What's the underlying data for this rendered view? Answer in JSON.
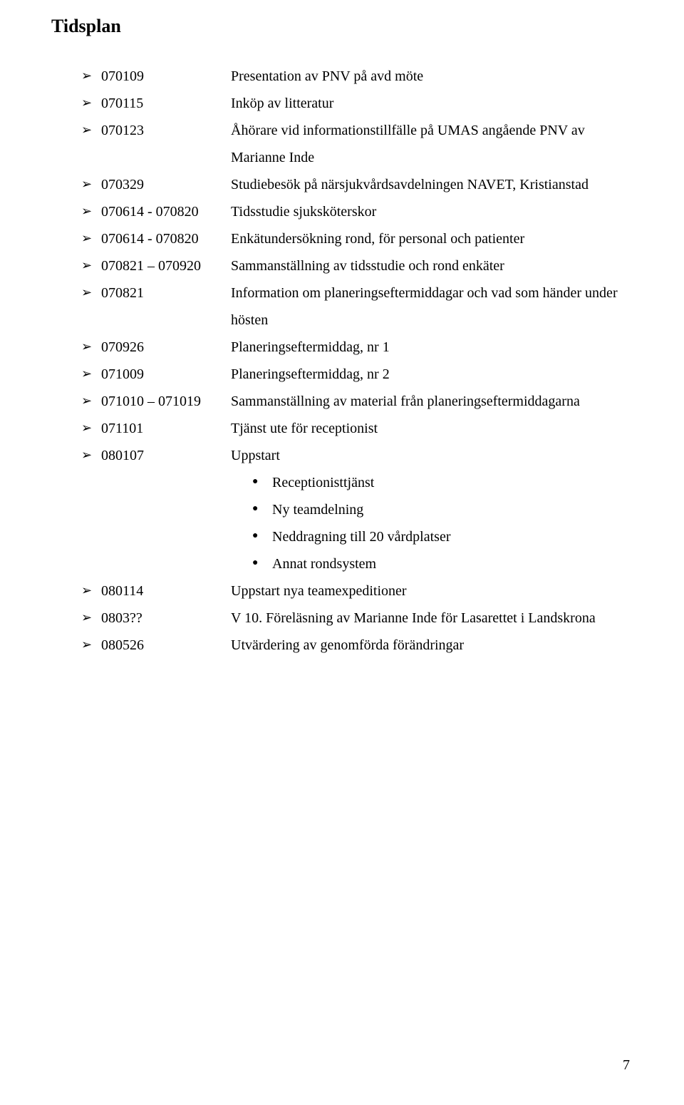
{
  "title": "Tidsplan",
  "pageNumber": "7",
  "items": [
    {
      "date": "070109",
      "label": "Presentation av PNV på avd möte"
    },
    {
      "date": "070115",
      "label": "Inköp av litteratur"
    },
    {
      "date": "070123",
      "label": "Åhörare vid informationstillfälle på UMAS angående PNV av Marianne Inde"
    },
    {
      "date": "070329",
      "label": "Studiebesök på närsjukvårdsavdelningen NAVET, Kristianstad"
    },
    {
      "date": "070614 - 070820",
      "label": "Tidsstudie sjuksköterskor"
    },
    {
      "date": "070614 - 070820",
      "label": "Enkätundersökning rond, för personal och patienter"
    },
    {
      "date": "070821 – 070920",
      "label": "Sammanställning av tidsstudie och rond enkäter"
    },
    {
      "date": "070821",
      "label": "Information om planeringseftermiddagar och vad som händer under hösten"
    },
    {
      "date": "070926",
      "label": "Planeringseftermiddag, nr 1"
    },
    {
      "date": "071009",
      "label": "Planeringseftermiddag, nr 2"
    },
    {
      "date": "071010 – 071019",
      "label": "Sammanställning av material från planeringseftermiddagarna"
    },
    {
      "date": "071101",
      "label": "Tjänst ute för receptionist"
    },
    {
      "date": "080107",
      "label": "Uppstart",
      "sub": [
        "Receptionisttjänst",
        "Ny teamdelning",
        "Neddragning till 20 vårdplatser",
        "Annat rondsystem"
      ]
    },
    {
      "date": "080114",
      "label": "Uppstart nya teamexpeditioner"
    },
    {
      "date": "0803??",
      "label": "V 10. Föreläsning av Marianne Inde för Lasarettet i Landskrona"
    },
    {
      "date": "080526",
      "label": "Utvärdering av genomförda förändringar"
    }
  ]
}
